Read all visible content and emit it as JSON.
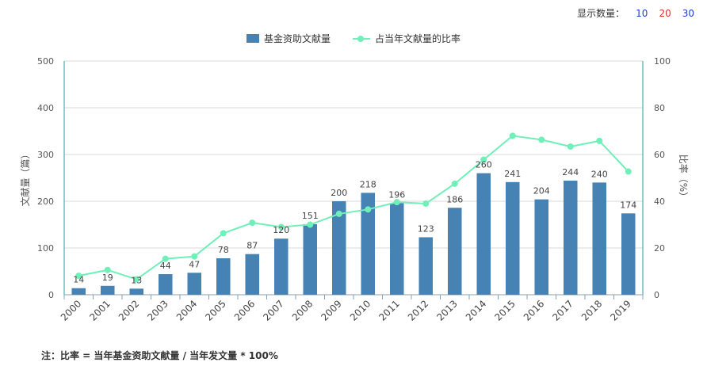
{
  "controls": {
    "label": "显示数量：",
    "options": [
      {
        "label": "10",
        "color": "#1a3fd6"
      },
      {
        "label": "20",
        "color": "#e0302a"
      },
      {
        "label": "30",
        "color": "#1a3fd6"
      }
    ]
  },
  "note": "注：比率 = 当年基金资助文献量 / 当年发文量 * 100%",
  "colors": {
    "bar": "#4682b4",
    "line": "#6ff0b8",
    "axis_right": "#2a9c9c"
  },
  "chart_data": {
    "type": "bar+line",
    "categories": [
      "2000",
      "2001",
      "2002",
      "2003",
      "2004",
      "2005",
      "2006",
      "2007",
      "2008",
      "2009",
      "2010",
      "2011",
      "2012",
      "2013",
      "2014",
      "2015",
      "2016",
      "2017",
      "2018",
      "2019"
    ],
    "series": [
      {
        "name": "基金资助文献量",
        "type": "bar",
        "axis": "left",
        "values": [
          14,
          19,
          13,
          44,
          47,
          78,
          87,
          120,
          151,
          200,
          218,
          196,
          123,
          186,
          260,
          241,
          204,
          244,
          240,
          174
        ]
      },
      {
        "name": "占当年文献量的比率",
        "type": "line",
        "axis": "right",
        "values": [
          8.1,
          10.6,
          6.6,
          15.4,
          16.4,
          26.3,
          30.8,
          29.0,
          30.0,
          34.6,
          36.5,
          39.6,
          39.0,
          47.5,
          57.8,
          68.0,
          66.3,
          63.4,
          65.8,
          52.7
        ]
      }
    ],
    "ylabel_left": "文献量（篇）",
    "ylabel_right": "比率（%）",
    "ylim_left": [
      0,
      500
    ],
    "ylim_right": [
      0,
      100
    ],
    "yticks_left": [
      "0",
      "100",
      "200",
      "300",
      "400",
      "500"
    ],
    "yticks_right": [
      "0",
      "20",
      "40",
      "60",
      "80",
      "100"
    ],
    "grid": true,
    "legend_position": "top-center"
  }
}
